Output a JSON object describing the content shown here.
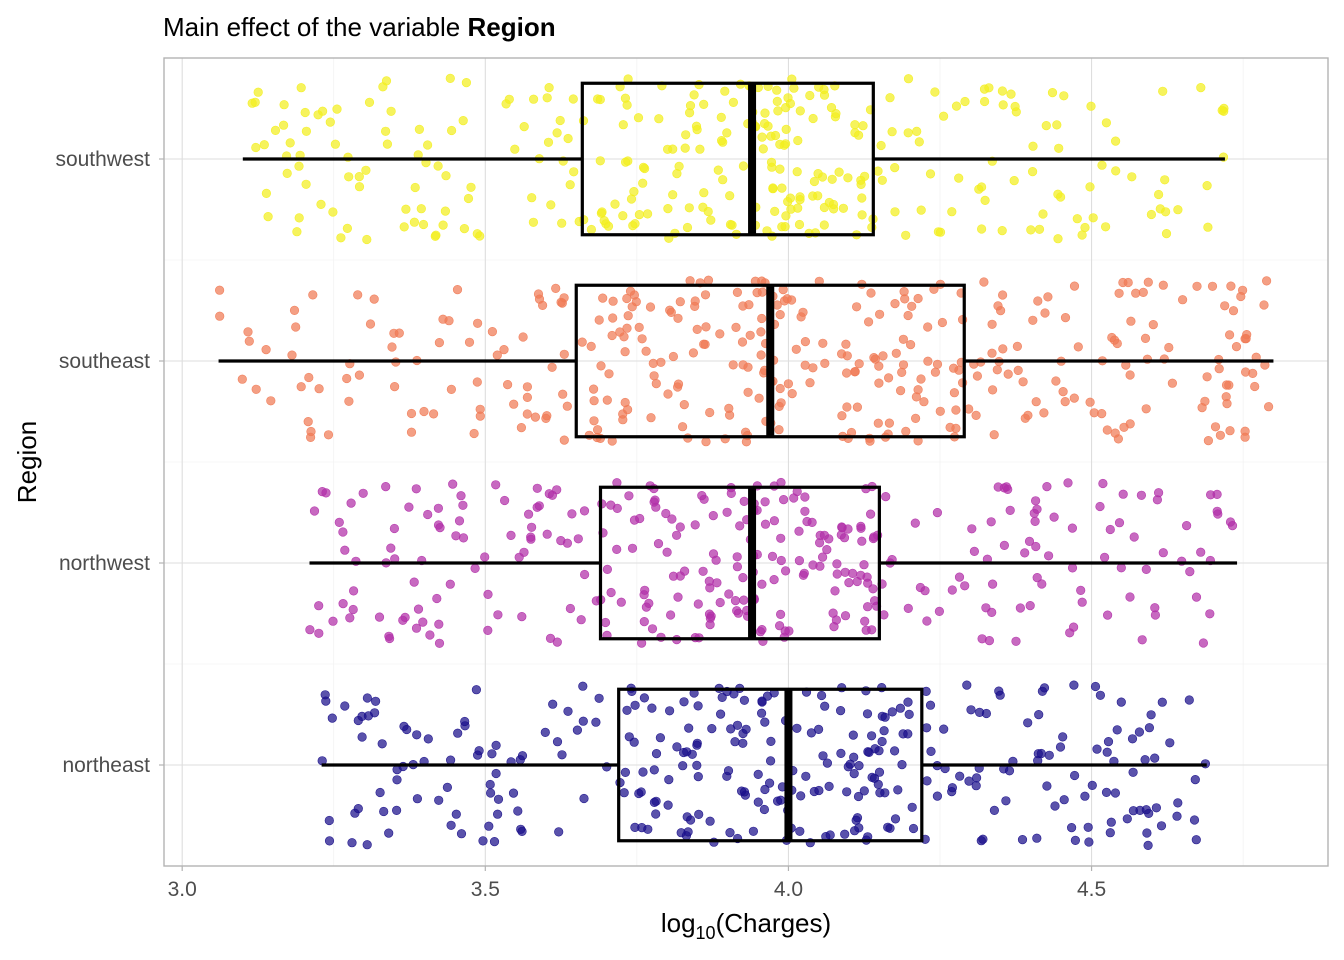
{
  "chart_data": {
    "type": "boxplot",
    "title_prefix": "Main effect of the variable ",
    "title_bold": "Region",
    "xlabel_main": "log",
    "xlabel_sub": "10",
    "xlabel_rest": "(Charges)",
    "ylabel": "Region",
    "xlim": [
      2.97,
      4.89
    ],
    "xticks": [
      3.0,
      3.5,
      4.0,
      4.5
    ],
    "xtick_labels": [
      "3.0",
      "3.5",
      "4.0",
      "4.5"
    ],
    "grid": true,
    "categories": [
      "northeast",
      "northwest",
      "southeast",
      "southwest"
    ],
    "boxes": [
      {
        "name": "northeast",
        "min": 3.23,
        "q1": 3.72,
        "median": 4.0,
        "q3": 4.22,
        "max": 4.69,
        "color": "#1a0f8a",
        "n": 324
      },
      {
        "name": "northwest",
        "min": 3.21,
        "q1": 3.69,
        "median": 3.94,
        "q3": 4.15,
        "max": 4.74,
        "color": "#b12fa8",
        "n": 325
      },
      {
        "name": "southeast",
        "min": 3.06,
        "q1": 3.65,
        "median": 3.97,
        "q3": 4.29,
        "max": 4.8,
        "color": "#f07a55",
        "n": 364
      },
      {
        "name": "southwest",
        "min": 3.1,
        "q1": 3.66,
        "median": 3.94,
        "q3": 4.14,
        "max": 4.72,
        "color": "#f3ee1e",
        "n": 325
      }
    ]
  }
}
